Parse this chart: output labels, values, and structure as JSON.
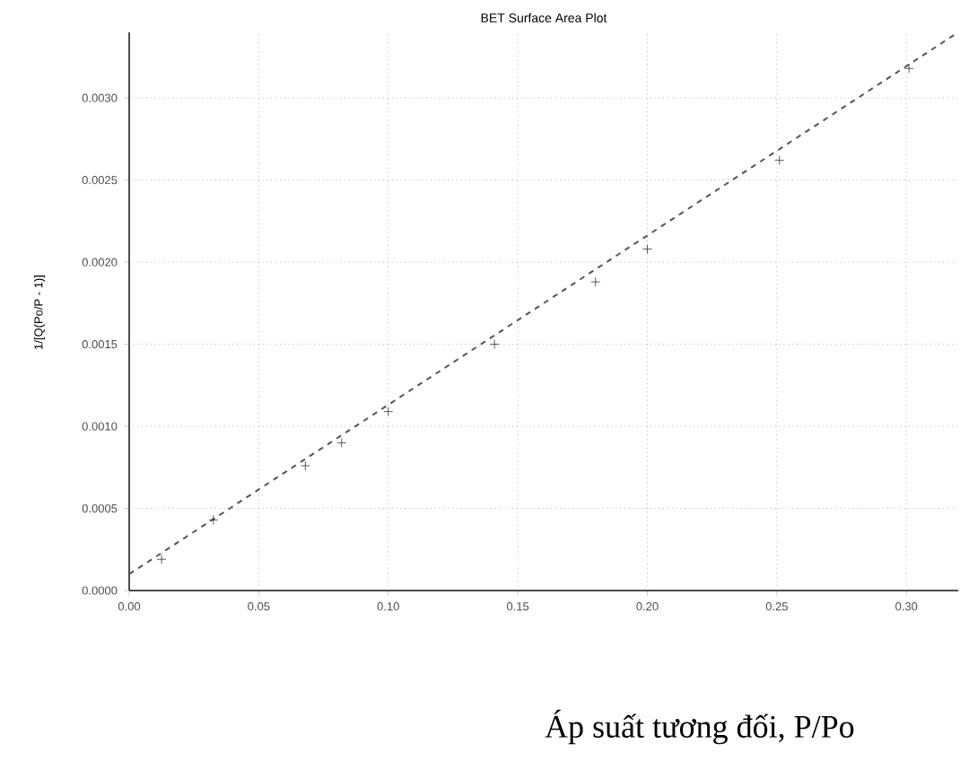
{
  "chart_data": {
    "type": "scatter",
    "title": "BET Surface Area Plot",
    "xlabel": "Áp suất tương đối, P/Po",
    "ylabel": "1/[Q(Po/P - 1)]",
    "xlim": [
      0,
      0.32
    ],
    "ylim": [
      0,
      0.0034
    ],
    "xticks": [
      {
        "value": 0,
        "label": "0.00"
      },
      {
        "value": 0.05,
        "label": "0.05"
      },
      {
        "value": 0.1,
        "label": "0.10"
      },
      {
        "value": 0.15,
        "label": "0.15"
      },
      {
        "value": 0.2,
        "label": "0.20"
      },
      {
        "value": 0.25,
        "label": "0.25"
      },
      {
        "value": 0.3,
        "label": "0.30"
      }
    ],
    "yticks": [
      {
        "value": 0,
        "label": "0.0000"
      },
      {
        "value": 0.0005,
        "label": "0.0005"
      },
      {
        "value": 0.001,
        "label": "0.0010"
      },
      {
        "value": 0.0015,
        "label": "0.0015"
      },
      {
        "value": 0.002,
        "label": "0.0020"
      },
      {
        "value": 0.0025,
        "label": "0.0025"
      },
      {
        "value": 0.003,
        "label": "0.0030"
      }
    ],
    "grid": true,
    "series": [
      {
        "color": "#333333",
        "marker": "cross",
        "x": [
          0.0125,
          0.0325,
          0.068,
          0.082,
          0.1,
          0.141,
          0.18,
          0.2,
          0.251,
          0.301
        ],
        "values": [
          0.00019,
          0.00043,
          0.00076,
          0.0009,
          0.00109,
          0.0015,
          0.00188,
          0.00208,
          0.00262,
          0.00318
        ]
      },
      {
        "type": "line",
        "color": "#555555",
        "line_style": "dashed",
        "marker": "none",
        "x": [
          0,
          0.32
        ],
        "values": [
          0.0001,
          0.0034
        ]
      }
    ]
  }
}
